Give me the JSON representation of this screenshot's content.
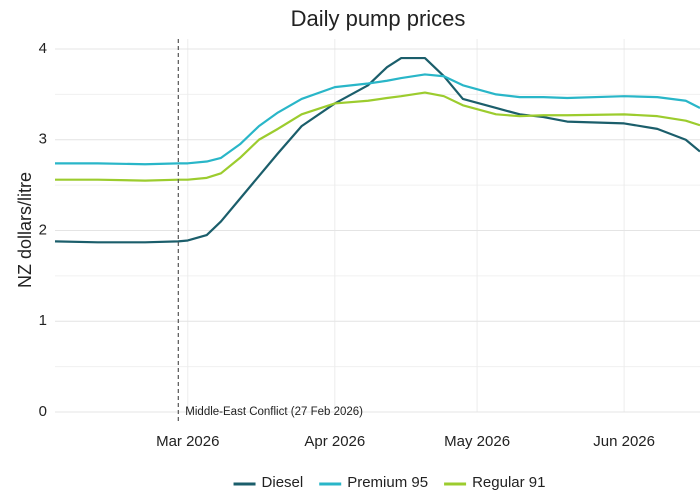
{
  "chart_data": {
    "type": "line",
    "title": "Daily pump prices",
    "ylabel": "NZ dollars/litre",
    "x": [
      "2026-02-01",
      "2026-02-10",
      "2026-02-20",
      "2026-02-27",
      "2026-03-01",
      "2026-03-05",
      "2026-03-08",
      "2026-03-12",
      "2026-03-16",
      "2026-03-20",
      "2026-03-25",
      "2026-04-01",
      "2026-04-08",
      "2026-04-12",
      "2026-04-15",
      "2026-04-20",
      "2026-04-24",
      "2026-04-28",
      "2026-05-05",
      "2026-05-10",
      "2026-05-15",
      "2026-05-20",
      "2026-06-01",
      "2026-06-08",
      "2026-06-14",
      "2026-06-17"
    ],
    "series": [
      {
        "name": "Diesel",
        "color": "#1b5e6b",
        "values": [
          1.88,
          1.87,
          1.87,
          1.88,
          1.89,
          1.95,
          2.1,
          2.35,
          2.6,
          2.85,
          3.15,
          3.4,
          3.6,
          3.8,
          3.9,
          3.9,
          3.7,
          3.45,
          3.35,
          3.28,
          3.25,
          3.2,
          3.18,
          3.12,
          3.0,
          2.87
        ]
      },
      {
        "name": "Premium 95",
        "color": "#29b6c8",
        "values": [
          2.74,
          2.74,
          2.73,
          2.74,
          2.74,
          2.76,
          2.8,
          2.95,
          3.15,
          3.3,
          3.45,
          3.58,
          3.62,
          3.65,
          3.68,
          3.72,
          3.7,
          3.6,
          3.5,
          3.47,
          3.47,
          3.46,
          3.48,
          3.47,
          3.43,
          3.35
        ]
      },
      {
        "name": "Regular 91",
        "color": "#9ccc2e",
        "values": [
          2.56,
          2.56,
          2.55,
          2.56,
          2.56,
          2.58,
          2.63,
          2.8,
          3.0,
          3.12,
          3.28,
          3.4,
          3.43,
          3.46,
          3.48,
          3.52,
          3.48,
          3.38,
          3.28,
          3.26,
          3.27,
          3.27,
          3.28,
          3.26,
          3.21,
          3.16
        ]
      }
    ],
    "xlim": [
      "2026-02-01",
      "2026-06-17"
    ],
    "xticks": [
      {
        "value": "2026-03-01",
        "label": "Mar 2026"
      },
      {
        "value": "2026-04-01",
        "label": "Apr 2026"
      },
      {
        "value": "2026-05-01",
        "label": "May 2026"
      },
      {
        "value": "2026-06-01",
        "label": "Jun 2026"
      }
    ],
    "ylim": [
      0,
      4.0
    ],
    "yticks": [
      0,
      1,
      2,
      3,
      4
    ],
    "yminor": [
      0.5,
      1.5,
      2.5,
      3.5
    ],
    "grid": true,
    "legend": "bottom",
    "annotation": {
      "x": "2026-02-27",
      "text": "Middle-East Conflict (27 Feb 2026)"
    }
  }
}
